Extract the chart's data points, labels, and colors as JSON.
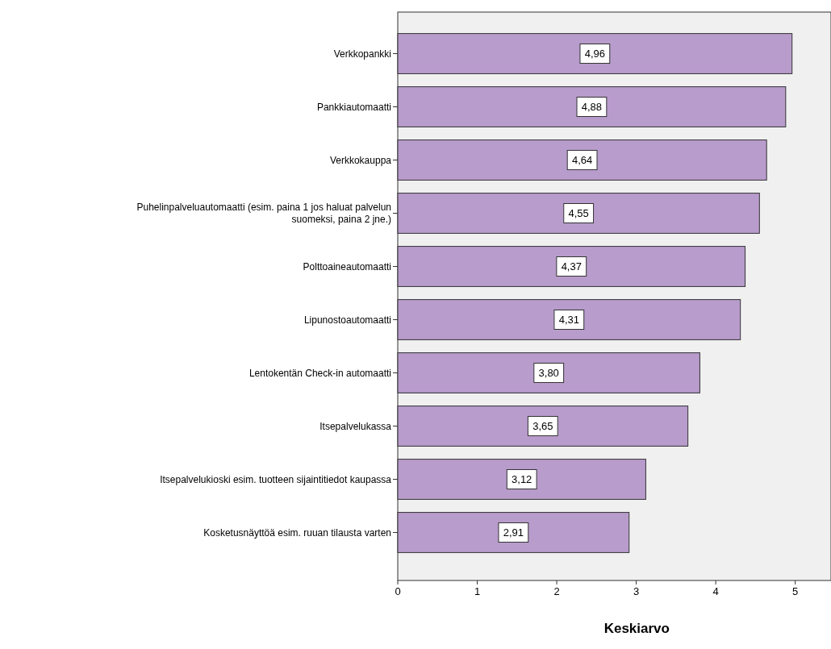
{
  "chart_data": {
    "type": "bar",
    "orientation": "horizontal",
    "xlabel": "Keskiarvo",
    "categories": [
      "Verkkopankki",
      "Pankkiautomaatti",
      "Verkkokauppa",
      "Puhelinpalveluautomaatti (esim. paina 1 jos haluat palvelun suomeksi, paina 2 jne.)",
      "Polttoaineautomaatti",
      "Lipunostoautomaatti",
      "Lentokentän Check-in automaatti",
      "Itsepalvelukassa",
      "Itsepalvelukioski esim. tuotteen sijaintitiedot kaupassa",
      "Kosketusnäyttöä esim. ruuan tilausta varten"
    ],
    "values": [
      4.96,
      4.88,
      4.64,
      4.55,
      4.37,
      4.31,
      3.8,
      3.65,
      3.12,
      2.91
    ],
    "value_labels": [
      "4,96",
      "4,88",
      "4,64",
      "4,55",
      "4,37",
      "4,31",
      "3,80",
      "3,65",
      "3,12",
      "2,91"
    ],
    "color": "#b89ccc",
    "xlim": [
      0,
      5.45
    ],
    "xticks": [
      0,
      1,
      2,
      3,
      4,
      5
    ],
    "grid": false
  }
}
